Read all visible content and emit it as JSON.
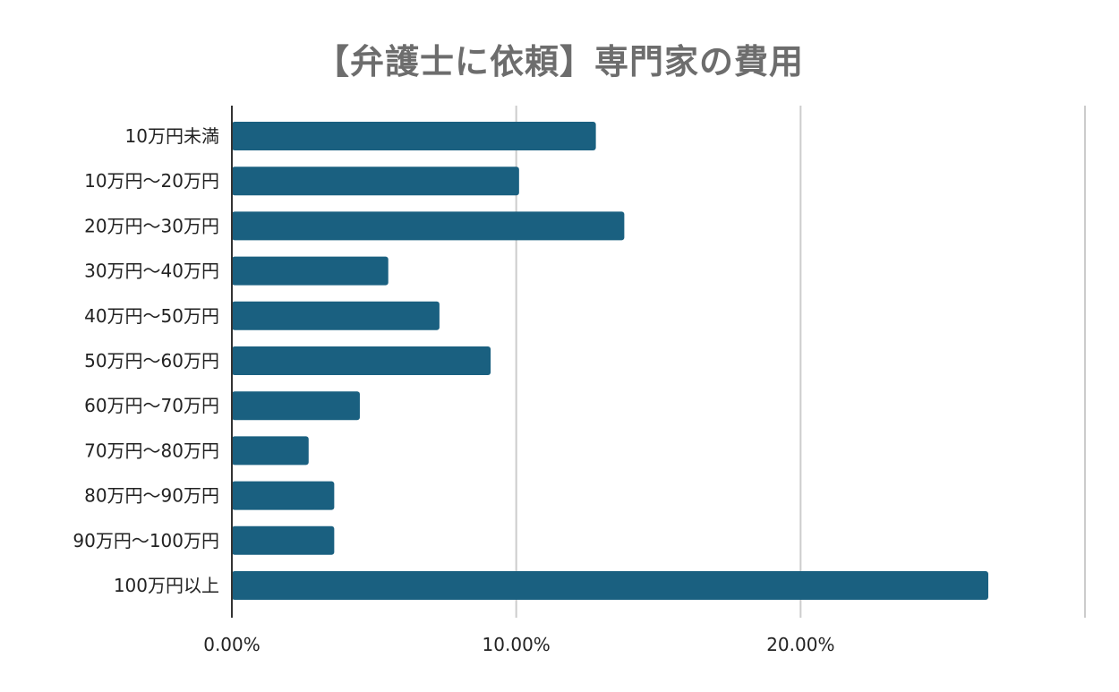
{
  "chart_data": {
    "type": "bar",
    "orientation": "horizontal",
    "title": "【弁護士に依頼】専門家の費用",
    "xlabel": "",
    "ylabel": "",
    "categories": [
      "10万円未満",
      "10万円～20万円",
      "20万円～30万円",
      "30万円～40万円",
      "40万円～50万円",
      "50万円～60万円",
      "60万円～70万円",
      "70万円～80万円",
      "80万円～90万円",
      "90万円～100万円",
      "100万円以上"
    ],
    "values": [
      12.8,
      10.1,
      13.8,
      5.5,
      7.3,
      9.1,
      4.5,
      2.7,
      3.6,
      3.6,
      26.6
    ],
    "xlim": [
      0,
      30
    ],
    "xticks": [
      "0.00%",
      "10.00%",
      "20.00%"
    ],
    "grid": true,
    "legend": "none",
    "colors": {
      "bar": "#1a6080",
      "grid": "#cccccc",
      "axis": "#333333",
      "title": "#6d6d6d",
      "label": "#222222"
    }
  }
}
